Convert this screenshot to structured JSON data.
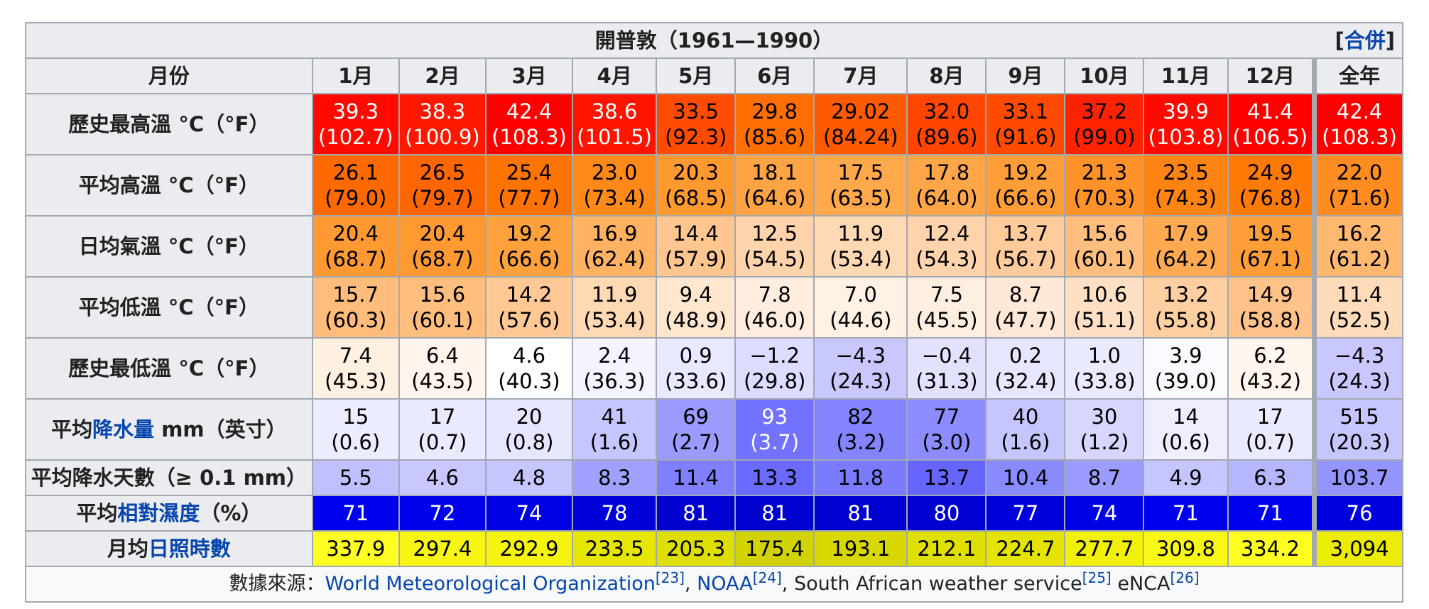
{
  "title": "開普敦（1961—1990）",
  "merge_link": "合併",
  "header": {
    "month_label": "月份",
    "months": [
      "1月",
      "2月",
      "3月",
      "4月",
      "5月",
      "6月",
      "7月",
      "8月",
      "9月",
      "10月",
      "11月",
      "12月"
    ],
    "year_label": "全年"
  },
  "rows": [
    {
      "label_parts": [
        {
          "text": "歷史最高溫 °C（°F）",
          "link": false
        }
      ],
      "two_line": true,
      "cells": [
        {
          "v": "39.3",
          "s": "(102.7)",
          "bg": "#ff0a00",
          "fg": "#ffffff"
        },
        {
          "v": "38.3",
          "s": "(100.9)",
          "bg": "#ff1800",
          "fg": "#ffffff"
        },
        {
          "v": "42.4",
          "s": "(108.3)",
          "bg": "#ff0000",
          "fg": "#ffffff"
        },
        {
          "v": "38.6",
          "s": "(101.5)",
          "bg": "#ff1400",
          "fg": "#ffffff"
        },
        {
          "v": "33.5",
          "s": "(92.3)",
          "bg": "#ff4c00",
          "fg": "#000000"
        },
        {
          "v": "29.8",
          "s": "(85.6)",
          "bg": "#ff6e00",
          "fg": "#000000"
        },
        {
          "v": "29.02",
          "s": "(84.24)",
          "bg": "#ff5a00",
          "fg": "#000000"
        },
        {
          "v": "32.0",
          "s": "(89.6)",
          "bg": "#ff4500",
          "fg": "#000000"
        },
        {
          "v": "33.1",
          "s": "(91.6)",
          "bg": "#ff4a00",
          "fg": "#000000"
        },
        {
          "v": "37.2",
          "s": "(99.0)",
          "bg": "#ff2200",
          "fg": "#000000"
        },
        {
          "v": "39.9",
          "s": "(103.8)",
          "bg": "#ff0a00",
          "fg": "#ffffff"
        },
        {
          "v": "41.4",
          "s": "(106.5)",
          "bg": "#ff0000",
          "fg": "#ffffff"
        },
        {
          "v": "42.4",
          "s": "(108.3)",
          "bg": "#ff0000",
          "fg": "#ffffff"
        }
      ]
    },
    {
      "label_parts": [
        {
          "text": "平均高溫 °C（°F）",
          "link": false
        }
      ],
      "two_line": true,
      "cells": [
        {
          "v": "26.1",
          "s": "(79.0)",
          "bg": "#ff6a00",
          "fg": "#000000"
        },
        {
          "v": "26.5",
          "s": "(79.7)",
          "bg": "#ff6600",
          "fg": "#000000"
        },
        {
          "v": "25.4",
          "s": "(77.7)",
          "bg": "#ff7300",
          "fg": "#000000"
        },
        {
          "v": "23.0",
          "s": "(73.4)",
          "bg": "#ff8a1a",
          "fg": "#000000"
        },
        {
          "v": "20.3",
          "s": "(68.5)",
          "bg": "#ff9a30",
          "fg": "#000000"
        },
        {
          "v": "18.1",
          "s": "(64.6)",
          "bg": "#ffa444",
          "fg": "#000000"
        },
        {
          "v": "17.5",
          "s": "(63.5)",
          "bg": "#ffa84c",
          "fg": "#000000"
        },
        {
          "v": "17.8",
          "s": "(64.0)",
          "bg": "#ffa648",
          "fg": "#000000"
        },
        {
          "v": "19.2",
          "s": "(66.6)",
          "bg": "#ff9e38",
          "fg": "#000000"
        },
        {
          "v": "21.3",
          "s": "(70.3)",
          "bg": "#ff9228",
          "fg": "#000000"
        },
        {
          "v": "23.5",
          "s": "(74.3)",
          "bg": "#ff8414",
          "fg": "#000000"
        },
        {
          "v": "24.9",
          "s": "(76.8)",
          "bg": "#ff7a06",
          "fg": "#000000"
        },
        {
          "v": "22.0",
          "s": "(71.6)",
          "bg": "#ff8c20",
          "fg": "#000000"
        }
      ]
    },
    {
      "label_parts": [
        {
          "text": "日均氣溫 °C（°F）",
          "link": false
        }
      ],
      "two_line": true,
      "cells": [
        {
          "v": "20.4",
          "s": "(68.7)",
          "bg": "#ff9a32",
          "fg": "#000000"
        },
        {
          "v": "20.4",
          "s": "(68.7)",
          "bg": "#ff9a32",
          "fg": "#000000"
        },
        {
          "v": "19.2",
          "s": "(66.6)",
          "bg": "#ffa23e",
          "fg": "#000000"
        },
        {
          "v": "16.9",
          "s": "(62.4)",
          "bg": "#ffb261",
          "fg": "#000000"
        },
        {
          "v": "14.4",
          "s": "(57.9)",
          "bg": "#ffc690",
          "fg": "#000000"
        },
        {
          "v": "12.5",
          "s": "(54.5)",
          "bg": "#ffd4ac",
          "fg": "#000000"
        },
        {
          "v": "11.9",
          "s": "(53.4)",
          "bg": "#ffd8b4",
          "fg": "#000000"
        },
        {
          "v": "12.4",
          "s": "(54.3)",
          "bg": "#ffd4ac",
          "fg": "#000000"
        },
        {
          "v": "13.7",
          "s": "(56.7)",
          "bg": "#ffcb9a",
          "fg": "#000000"
        },
        {
          "v": "15.6",
          "s": "(60.1)",
          "bg": "#ffbd7e",
          "fg": "#000000"
        },
        {
          "v": "17.9",
          "s": "(64.2)",
          "bg": "#ffaa50",
          "fg": "#000000"
        },
        {
          "v": "19.5",
          "s": "(67.1)",
          "bg": "#ff9e38",
          "fg": "#000000"
        },
        {
          "v": "16.2",
          "s": "(61.2)",
          "bg": "#ffb870",
          "fg": "#000000"
        }
      ]
    },
    {
      "label_parts": [
        {
          "text": "平均低溫 °C（°F）",
          "link": false
        }
      ],
      "two_line": true,
      "cells": [
        {
          "v": "15.7",
          "s": "(60.3)",
          "bg": "#ffbc7a",
          "fg": "#000000"
        },
        {
          "v": "15.6",
          "s": "(60.1)",
          "bg": "#ffbd7e",
          "fg": "#000000"
        },
        {
          "v": "14.2",
          "s": "(57.6)",
          "bg": "#ffc894",
          "fg": "#000000"
        },
        {
          "v": "11.9",
          "s": "(53.4)",
          "bg": "#ffd8b4",
          "fg": "#000000"
        },
        {
          "v": "9.4",
          "s": "(48.9)",
          "bg": "#ffe6cf",
          "fg": "#000000"
        },
        {
          "v": "7.8",
          "s": "(46.0)",
          "bg": "#ffeedf",
          "fg": "#000000"
        },
        {
          "v": "7.0",
          "s": "(44.6)",
          "bg": "#fff1e4",
          "fg": "#000000"
        },
        {
          "v": "7.5",
          "s": "(45.5)",
          "bg": "#ffefe1",
          "fg": "#000000"
        },
        {
          "v": "8.7",
          "s": "(47.7)",
          "bg": "#ffe9d6",
          "fg": "#000000"
        },
        {
          "v": "10.6",
          "s": "(51.1)",
          "bg": "#ffe0c4",
          "fg": "#000000"
        },
        {
          "v": "13.2",
          "s": "(55.8)",
          "bg": "#ffcfa2",
          "fg": "#000000"
        },
        {
          "v": "14.9",
          "s": "(58.8)",
          "bg": "#ffc289",
          "fg": "#000000"
        },
        {
          "v": "11.4",
          "s": "(52.5)",
          "bg": "#ffdbba",
          "fg": "#000000"
        }
      ]
    },
    {
      "label_parts": [
        {
          "text": "歷史最低溫 °C（°F）",
          "link": false
        }
      ],
      "two_line": true,
      "cells": [
        {
          "v": "7.4",
          "s": "(45.3)",
          "bg": "#fff0e1",
          "fg": "#000000"
        },
        {
          "v": "6.4",
          "s": "(43.5)",
          "bg": "#fff5ec",
          "fg": "#000000"
        },
        {
          "v": "4.6",
          "s": "(40.3)",
          "bg": "#ffffff",
          "fg": "#000000"
        },
        {
          "v": "2.4",
          "s": "(36.3)",
          "bg": "#f4f4ff",
          "fg": "#000000"
        },
        {
          "v": "0.9",
          "s": "(33.6)",
          "bg": "#e8e8ff",
          "fg": "#000000"
        },
        {
          "v": "−1.2",
          "s": "(29.8)",
          "bg": "#dcdcff",
          "fg": "#000000"
        },
        {
          "v": "−4.3",
          "s": "(24.3)",
          "bg": "#c8c8ff",
          "fg": "#000000"
        },
        {
          "v": "−0.4",
          "s": "(31.3)",
          "bg": "#e2e2ff",
          "fg": "#000000"
        },
        {
          "v": "0.2",
          "s": "(32.4)",
          "bg": "#e6e6ff",
          "fg": "#000000"
        },
        {
          "v": "1.0",
          "s": "(33.8)",
          "bg": "#eaeaff",
          "fg": "#000000"
        },
        {
          "v": "3.9",
          "s": "(39.0)",
          "bg": "#fbfbff",
          "fg": "#000000"
        },
        {
          "v": "6.2",
          "s": "(43.2)",
          "bg": "#fff6ee",
          "fg": "#000000"
        },
        {
          "v": "−4.3",
          "s": "(24.3)",
          "bg": "#c8c8ff",
          "fg": "#000000"
        }
      ]
    },
    {
      "label_parts": [
        {
          "text": "平均",
          "link": false
        },
        {
          "text": "降水量",
          "link": true
        },
        {
          "text": " mm（英寸）",
          "link": false
        }
      ],
      "two_line": true,
      "cells": [
        {
          "v": "15",
          "s": "(0.6)",
          "bg": "#ececff",
          "fg": "#000000"
        },
        {
          "v": "17",
          "s": "(0.7)",
          "bg": "#eaeaff",
          "fg": "#000000"
        },
        {
          "v": "20",
          "s": "(0.8)",
          "bg": "#e6e6ff",
          "fg": "#000000"
        },
        {
          "v": "41",
          "s": "(1.6)",
          "bg": "#c6c6ff",
          "fg": "#000000"
        },
        {
          "v": "69",
          "s": "(2.7)",
          "bg": "#9a9aff",
          "fg": "#000000"
        },
        {
          "v": "93",
          "s": "(3.7)",
          "bg": "#7272ff",
          "fg": "#ffffff"
        },
        {
          "v": "82",
          "s": "(3.2)",
          "bg": "#8484ff",
          "fg": "#000000"
        },
        {
          "v": "77",
          "s": "(3.0)",
          "bg": "#8c8cff",
          "fg": "#000000"
        },
        {
          "v": "40",
          "s": "(1.6)",
          "bg": "#c6c6ff",
          "fg": "#000000"
        },
        {
          "v": "30",
          "s": "(1.2)",
          "bg": "#d6d6ff",
          "fg": "#000000"
        },
        {
          "v": "14",
          "s": "(0.6)",
          "bg": "#eeeeff",
          "fg": "#000000"
        },
        {
          "v": "17",
          "s": "(0.7)",
          "bg": "#eaeaff",
          "fg": "#000000"
        },
        {
          "v": "515",
          "s": "(20.3)",
          "bg": "#c6c6ff",
          "fg": "#000000"
        }
      ]
    },
    {
      "label_parts": [
        {
          "text": "平均降水天數（≥ 0.1 mm）",
          "link": false
        }
      ],
      "two_line": false,
      "cells": [
        {
          "v": "5.5",
          "bg": "#c0c0ff",
          "fg": "#000000"
        },
        {
          "v": "4.6",
          "bg": "#c8c8ff",
          "fg": "#000000"
        },
        {
          "v": "4.8",
          "bg": "#c6c6ff",
          "fg": "#000000"
        },
        {
          "v": "8.3",
          "bg": "#a0a0ff",
          "fg": "#000000"
        },
        {
          "v": "11.4",
          "bg": "#8080ff",
          "fg": "#000000"
        },
        {
          "v": "13.3",
          "bg": "#6a6aff",
          "fg": "#000000"
        },
        {
          "v": "11.8",
          "bg": "#7b7bff",
          "fg": "#000000"
        },
        {
          "v": "13.7",
          "bg": "#6666ff",
          "fg": "#000000"
        },
        {
          "v": "10.4",
          "bg": "#8a8aff",
          "fg": "#000000"
        },
        {
          "v": "8.7",
          "bg": "#9c9cff",
          "fg": "#000000"
        },
        {
          "v": "4.9",
          "bg": "#c6c6ff",
          "fg": "#000000"
        },
        {
          "v": "6.3",
          "bg": "#b6b6ff",
          "fg": "#000000"
        },
        {
          "v": "103.7",
          "bg": "#9494ff",
          "fg": "#000000"
        }
      ]
    },
    {
      "label_parts": [
        {
          "text": "平均",
          "link": false
        },
        {
          "text": "相對濕度",
          "link": true
        },
        {
          "text": "（%）",
          "link": false
        }
      ],
      "two_line": false,
      "cells": [
        {
          "v": "71",
          "bg": "#0000ee",
          "fg": "#ffffff"
        },
        {
          "v": "72",
          "bg": "#0000ea",
          "fg": "#ffffff"
        },
        {
          "v": "74",
          "bg": "#0000e4",
          "fg": "#ffffff"
        },
        {
          "v": "78",
          "bg": "#0000d8",
          "fg": "#ffffff"
        },
        {
          "v": "81",
          "bg": "#0000cf",
          "fg": "#ffffff"
        },
        {
          "v": "81",
          "bg": "#0000cf",
          "fg": "#ffffff"
        },
        {
          "v": "81",
          "bg": "#0000cf",
          "fg": "#ffffff"
        },
        {
          "v": "80",
          "bg": "#0000d2",
          "fg": "#ffffff"
        },
        {
          "v": "77",
          "bg": "#0000db",
          "fg": "#ffffff"
        },
        {
          "v": "74",
          "bg": "#0000e4",
          "fg": "#ffffff"
        },
        {
          "v": "71",
          "bg": "#0000ee",
          "fg": "#ffffff"
        },
        {
          "v": "71",
          "bg": "#0000ee",
          "fg": "#ffffff"
        },
        {
          "v": "76",
          "bg": "#0000de",
          "fg": "#ffffff"
        }
      ]
    },
    {
      "label_parts": [
        {
          "text": "月均",
          "link": false
        },
        {
          "text": "日照時數",
          "link": true
        }
      ],
      "two_line": false,
      "cells": [
        {
          "v": "337.9",
          "bg": "#ffff22",
          "fg": "#000000"
        },
        {
          "v": "297.4",
          "bg": "#f6f612",
          "fg": "#000000"
        },
        {
          "v": "292.9",
          "bg": "#f4f40e",
          "fg": "#000000"
        },
        {
          "v": "233.5",
          "bg": "#e6e600",
          "fg": "#000000"
        },
        {
          "v": "205.3",
          "bg": "#dede00",
          "fg": "#000000"
        },
        {
          "v": "175.4",
          "bg": "#d2d200",
          "fg": "#000000"
        },
        {
          "v": "193.1",
          "bg": "#d8d800",
          "fg": "#000000"
        },
        {
          "v": "212.1",
          "bg": "#e0e000",
          "fg": "#000000"
        },
        {
          "v": "224.7",
          "bg": "#e4e400",
          "fg": "#000000"
        },
        {
          "v": "277.7",
          "bg": "#f0f008",
          "fg": "#000000"
        },
        {
          "v": "309.8",
          "bg": "#f8f816",
          "fg": "#000000"
        },
        {
          "v": "334.2",
          "bg": "#fefe20",
          "fg": "#000000"
        },
        {
          "v": "3,094",
          "bg": "#ecec06",
          "fg": "#000000"
        }
      ]
    }
  ],
  "source": {
    "prefix": "數據來源：",
    "parts": [
      {
        "text": "World Meteorological Organization",
        "link": true,
        "ref": "[23]"
      },
      {
        "text": "NOAA",
        "link": true,
        "ref": "[24]"
      },
      {
        "text": "South African weather service",
        "link": false,
        "ref": "[25]"
      },
      {
        "text": "eNCA",
        "link": false,
        "ref": "[26]"
      }
    ]
  },
  "colors": {
    "link": "#0645ad",
    "header_bg": "#eaecf0",
    "border": "#a2a9b1"
  }
}
